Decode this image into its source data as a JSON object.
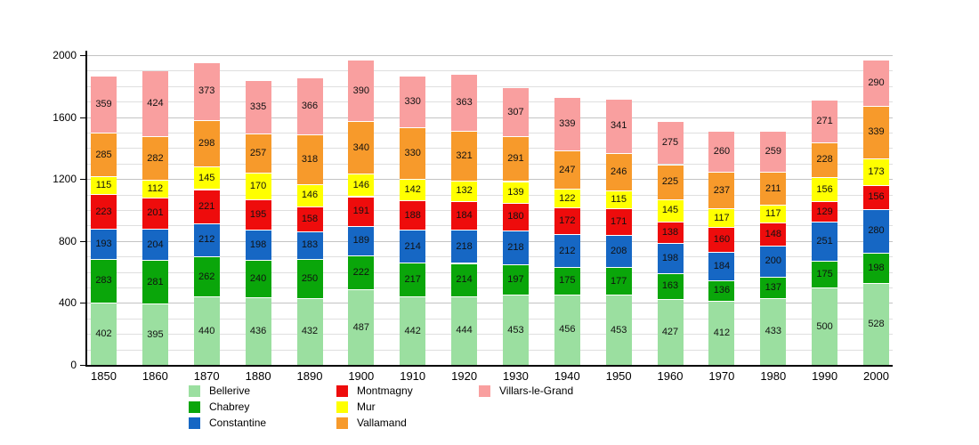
{
  "chart_data": {
    "type": "bar",
    "stacked": true,
    "title": "",
    "xlabel": "",
    "ylabel": "",
    "categories": [
      "1850",
      "1860",
      "1870",
      "1880",
      "1890",
      "1900",
      "1910",
      "1920",
      "1930",
      "1940",
      "1950",
      "1960",
      "1970",
      "1980",
      "1990",
      "2000"
    ],
    "series": [
      {
        "name": "Bellerive",
        "color": "#9bdfa0",
        "values": [
          402,
          395,
          440,
          436,
          432,
          487,
          442,
          444,
          453,
          456,
          453,
          427,
          412,
          433,
          500,
          528
        ]
      },
      {
        "name": "Chabrey",
        "color": "#0aa60a",
        "values": [
          283,
          281,
          262,
          240,
          250,
          222,
          217,
          214,
          197,
          175,
          177,
          163,
          136,
          137,
          175,
          198
        ]
      },
      {
        "name": "Constantine",
        "color": "#1667c4",
        "values": [
          193,
          204,
          212,
          198,
          183,
          189,
          214,
          218,
          218,
          212,
          208,
          198,
          184,
          200,
          251,
          280
        ]
      },
      {
        "name": "Montmagny",
        "color": "#ee0c0c",
        "values": [
          223,
          201,
          221,
          195,
          158,
          191,
          188,
          184,
          180,
          172,
          171,
          138,
          160,
          148,
          129,
          156
        ]
      },
      {
        "name": "Mur",
        "color": "#ffff00",
        "values": [
          115,
          112,
          145,
          170,
          146,
          146,
          142,
          132,
          139,
          122,
          115,
          145,
          117,
          117,
          156,
          173
        ]
      },
      {
        "name": "Vallamand",
        "color": "#f79a2b",
        "values": [
          285,
          282,
          298,
          257,
          318,
          340,
          330,
          321,
          291,
          247,
          246,
          225,
          237,
          211,
          228,
          339
        ]
      },
      {
        "name": "Villars-le-Grand",
        "color": "#f99f9f",
        "values": [
          359,
          424,
          373,
          335,
          366,
          390,
          330,
          363,
          307,
          339,
          341,
          275,
          260,
          259,
          271,
          290
        ]
      }
    ],
    "ylim": [
      0,
      2000
    ],
    "yticks": [
      0,
      400,
      800,
      1200,
      1600,
      2000
    ],
    "minor_grid_step": 100,
    "grid": true,
    "legend_position": "bottom",
    "legend_items_per_column": 3,
    "colors": {
      "grid_major": "#c3c3c3",
      "grid_minor": "#dfdfdf",
      "axis": "#000000",
      "segment_divider": "#ffffff"
    }
  }
}
